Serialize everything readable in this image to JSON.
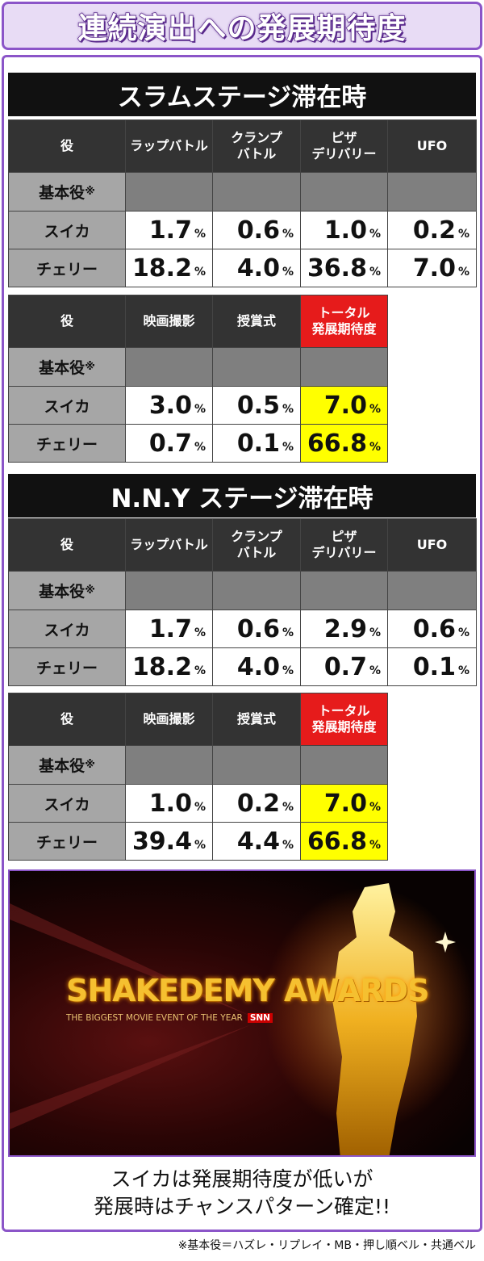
{
  "header": {
    "title": "連続演出への発展期待度"
  },
  "unit": "%",
  "sections": [
    {
      "title": "スラムステージ滞在時",
      "tables": [
        {
          "columns": [
            "役",
            "ラップバトル",
            "クランプ\nバトル",
            "ピザ\nデリバリー",
            "UFO"
          ],
          "highlight_last_column": false,
          "rows": [
            {
              "label": "基本役",
              "mark": "※"
            },
            {
              "label": "スイカ",
              "cells": [
                "1.7",
                "0.6",
                "1.0",
                "0.2"
              ]
            },
            {
              "label": "チェリー",
              "cells": [
                "18.2",
                "4.0",
                "36.8",
                "7.0"
              ]
            }
          ]
        },
        {
          "columns": [
            "役",
            "映画撮影",
            "授賞式",
            "トータル\n発展期待度"
          ],
          "highlight_last_column": true,
          "rows": [
            {
              "label": "基本役",
              "mark": "※"
            },
            {
              "label": "スイカ",
              "cells": [
                "3.0",
                "0.5",
                "7.0"
              ]
            },
            {
              "label": "チェリー",
              "cells": [
                "0.7",
                "0.1",
                "66.8"
              ]
            }
          ]
        }
      ]
    },
    {
      "title": "N.N.Y ステージ滞在時",
      "tables": [
        {
          "columns": [
            "役",
            "ラップバトル",
            "クランプ\nバトル",
            "ピザ\nデリバリー",
            "UFO"
          ],
          "highlight_last_column": false,
          "rows": [
            {
              "label": "基本役",
              "mark": "※"
            },
            {
              "label": "スイカ",
              "cells": [
                "1.7",
                "0.6",
                "2.9",
                "0.6"
              ]
            },
            {
              "label": "チェリー",
              "cells": [
                "18.2",
                "4.0",
                "0.7",
                "0.1"
              ]
            }
          ]
        },
        {
          "columns": [
            "役",
            "映画撮影",
            "授賞式",
            "トータル\n発展期待度"
          ],
          "highlight_last_column": true,
          "rows": [
            {
              "label": "基本役",
              "mark": "※"
            },
            {
              "label": "スイカ",
              "cells": [
                "1.0",
                "0.2",
                "7.0"
              ]
            },
            {
              "label": "チェリー",
              "cells": [
                "39.4",
                "4.4",
                "66.8"
              ]
            }
          ]
        }
      ]
    }
  ],
  "banner": {
    "title": "SHAKEDEMY AWARDS",
    "subtitle": "THE BIGGEST MOVIE EVENT OF THE YEAR",
    "logo": "SNN"
  },
  "caption": [
    "スイカは発展期待度が低いが",
    "発展時はチャンスパターン確定!!"
  ],
  "footnote": "※基本役＝ハズレ・リプレイ・MB・押し順ベル・共通ベル"
}
